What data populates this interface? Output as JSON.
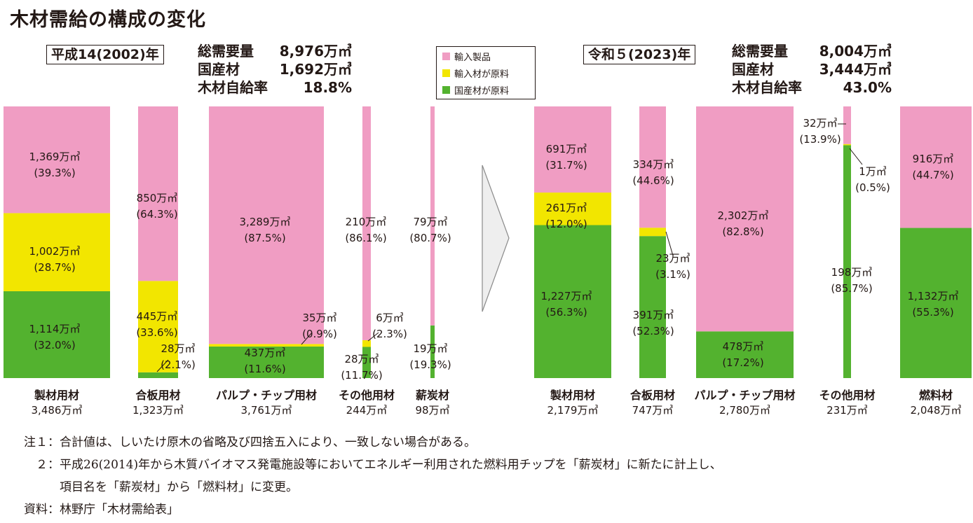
{
  "title": "木材需給の構成の変化",
  "legend": [
    {
      "name": "輸入製品",
      "color": "#f09dc3"
    },
    {
      "name": "輸入材が原料",
      "color": "#f2e600"
    },
    {
      "name": "国産材が原料",
      "color": "#53b22f"
    }
  ],
  "summary_2002": {
    "period": "平成14(2002)年",
    "rows": [
      {
        "label": "総需要量",
        "value": "8,976万㎥"
      },
      {
        "label": "国産材",
        "value": "1,692万㎥"
      },
      {
        "label": "木材自給率",
        "value": "18.8%"
      }
    ]
  },
  "summary_2023": {
    "period": "令和５(2023)年",
    "rows": [
      {
        "label": "総需要量",
        "value": "8,004万㎥"
      },
      {
        "label": "国産材",
        "value": "3,444万㎥"
      },
      {
        "label": "木材自給率",
        "value": "43.0%"
      }
    ]
  },
  "chart_data": [
    {
      "type": "bar",
      "stacked": true,
      "period": "平成14(2002)年",
      "categories": [
        "製材用材",
        "合板用材",
        "パルプ・チップ用材",
        "その他用材",
        "薪炭材"
      ],
      "totals": [
        "3,486万㎥",
        "1,323万㎥",
        "3,761万㎥",
        "244万㎥",
        "98万㎥"
      ],
      "total_values": [
        3486,
        1323,
        3761,
        244,
        98
      ],
      "series": [
        {
          "name": "輸入製品",
          "values": [
            1369,
            850,
            3289,
            210,
            79
          ],
          "value_labels": [
            "1,369万㎥",
            "850万㎥",
            "3,289万㎥",
            "210万㎥",
            "79万㎥"
          ],
          "pct_labels": [
            "(39.3%)",
            "(64.3%)",
            "(87.5%)",
            "(86.1%)",
            "(80.7%)"
          ]
        },
        {
          "name": "輸入材が原料",
          "values": [
            1002,
            445,
            35,
            6,
            0
          ],
          "value_labels": [
            "1,002万㎥",
            "445万㎥",
            "35万㎥",
            "6万㎥",
            ""
          ],
          "pct_labels": [
            "(28.7%)",
            "(33.6%)",
            "(0.9%)",
            "(2.3%)",
            ""
          ]
        },
        {
          "name": "国産材が原料",
          "values": [
            1114,
            28,
            437,
            28,
            19
          ],
          "value_labels": [
            "1,114万㎥",
            "28万㎥",
            "437万㎥",
            "28万㎥",
            "19万㎥"
          ],
          "pct_labels": [
            "(32.0%)",
            "(2.1%)",
            "(11.6%)",
            "(11.7%)",
            "(19.3%)"
          ]
        }
      ]
    },
    {
      "type": "bar",
      "stacked": true,
      "period": "令和５(2023)年",
      "categories": [
        "製材用材",
        "合板用材",
        "パルプ・チップ用材",
        "その他用材",
        "燃料材"
      ],
      "totals": [
        "2,179万㎥",
        "747万㎥",
        "2,780万㎥",
        "231万㎥",
        "2,048万㎥"
      ],
      "total_values": [
        2179,
        747,
        2780,
        231,
        2048
      ],
      "series": [
        {
          "name": "輸入製品",
          "values": [
            691,
            334,
            2302,
            32,
            916
          ],
          "value_labels": [
            "691万㎥",
            "334万㎥",
            "2,302万㎥",
            "32万㎥",
            "916万㎥"
          ],
          "pct_labels": [
            "(31.7%)",
            "(44.6%)",
            "(82.8%)",
            "(13.9%)",
            "(44.7%)"
          ]
        },
        {
          "name": "輸入材が原料",
          "values": [
            261,
            23,
            0,
            1,
            0
          ],
          "value_labels": [
            "261万㎥",
            "23万㎥",
            "",
            "1万㎥",
            ""
          ],
          "pct_labels": [
            "(12.0%)",
            "(3.1%)",
            "",
            "(0.5%)",
            ""
          ]
        },
        {
          "name": "国産材が原料",
          "values": [
            1227,
            391,
            478,
            198,
            1132
          ],
          "value_labels": [
            "1,227万㎥",
            "391万㎥",
            "478万㎥",
            "198万㎥",
            "1,132万㎥"
          ],
          "pct_labels": [
            "(56.3%)",
            "(52.3%)",
            "(17.2%)",
            "(85.7%)",
            "(55.3%)"
          ]
        }
      ]
    }
  ],
  "notes": [
    "注１：合計値は、しいたけ原木の省略及び四捨五入により、一致しない場合がある。",
    "　２：平成26(2014)年から木質バイオマス発電施設等においてエネルギー利用された燃料用チップを「薪炭材」に新たに計上し、",
    "　　　項目名を「薪炭材」から「燃料材」に変更。",
    "資料：林野庁「木材需給表」"
  ]
}
